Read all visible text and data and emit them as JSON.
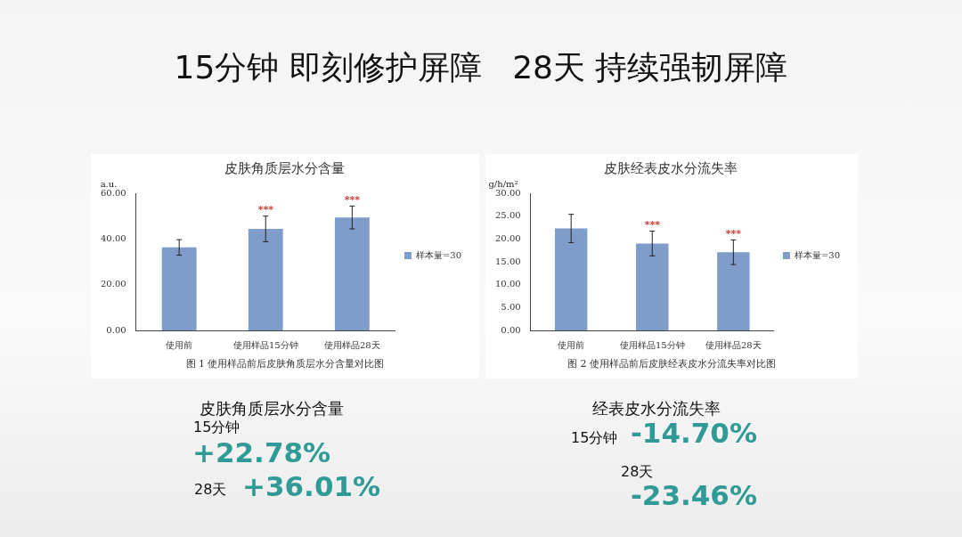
{
  "chart_data": [
    {
      "type": "other",
      "title": "15分钟 即刻修护屏障   28天 持续强韧屏障"
    },
    {
      "type": "bar",
      "title": "皮肤角质层水分含量",
      "ylabel": "a.u.",
      "categories": [
        "使用前",
        "使用样品15分钟",
        "使用样品28天"
      ],
      "series": [
        {
          "name": "样本量=30",
          "color": "#7f9ccb",
          "values": [
            36.3,
            44.4,
            49.4
          ],
          "errors": [
            3.4,
            5.6,
            5.0
          ]
        }
      ],
      "ylim": [
        0,
        60
      ],
      "yticks": [
        {
          "value": 0,
          "label": "0.00"
        },
        {
          "value": 20,
          "label": "20.00"
        },
        {
          "value": 40,
          "label": "40.00"
        },
        {
          "value": 60,
          "label": "60.00"
        }
      ],
      "grid": false,
      "legend": "right",
      "annotations": [
        "图 1 使用样品前后皮肤角质层水分含量对比图",
        {
          "text": "***",
          "x": "使用样品15分钟",
          "y": 50.0
        },
        {
          "text": "***",
          "x": "使用样品28天",
          "y": 54.2
        },
        "皮肤角质层水分含量",
        "15分钟",
        "+22.78%",
        "28天",
        "+36.01%"
      ]
    },
    {
      "type": "bar",
      "title": "皮肤经表皮水分流失率",
      "ylabel": "g/h/m²",
      "categories": [
        "使用前",
        "使用样品15分钟",
        "使用样品28天"
      ],
      "series": [
        {
          "name": "样本量=30",
          "color": "#7f9ccb",
          "values": [
            22.3,
            19.0,
            17.1
          ],
          "errors": [
            3.1,
            2.7,
            2.7
          ]
        }
      ],
      "ylim": [
        0,
        30
      ],
      "yticks": [
        {
          "value": 0,
          "label": "0.00"
        },
        {
          "value": 5,
          "label": "5.00"
        },
        {
          "value": 10,
          "label": "10.00"
        },
        {
          "value": 15,
          "label": "15.00"
        },
        {
          "value": 20,
          "label": "20.00"
        },
        {
          "value": 25,
          "label": "25.00"
        },
        {
          "value": 30,
          "label": "30.00"
        }
      ],
      "grid": false,
      "legend": "right",
      "annotations": [
        "图 2 使用样品前后皮肤经表皮水分流失率对比图",
        {
          "text": "***",
          "x": "使用样品15分钟",
          "y": 21.7
        },
        {
          "text": "***",
          "x": "使用样品28天",
          "y": 19.8
        },
        "经表皮水分流失率",
        "15分钟",
        "-14.70%",
        "28天",
        "-23.46%"
      ]
    }
  ]
}
